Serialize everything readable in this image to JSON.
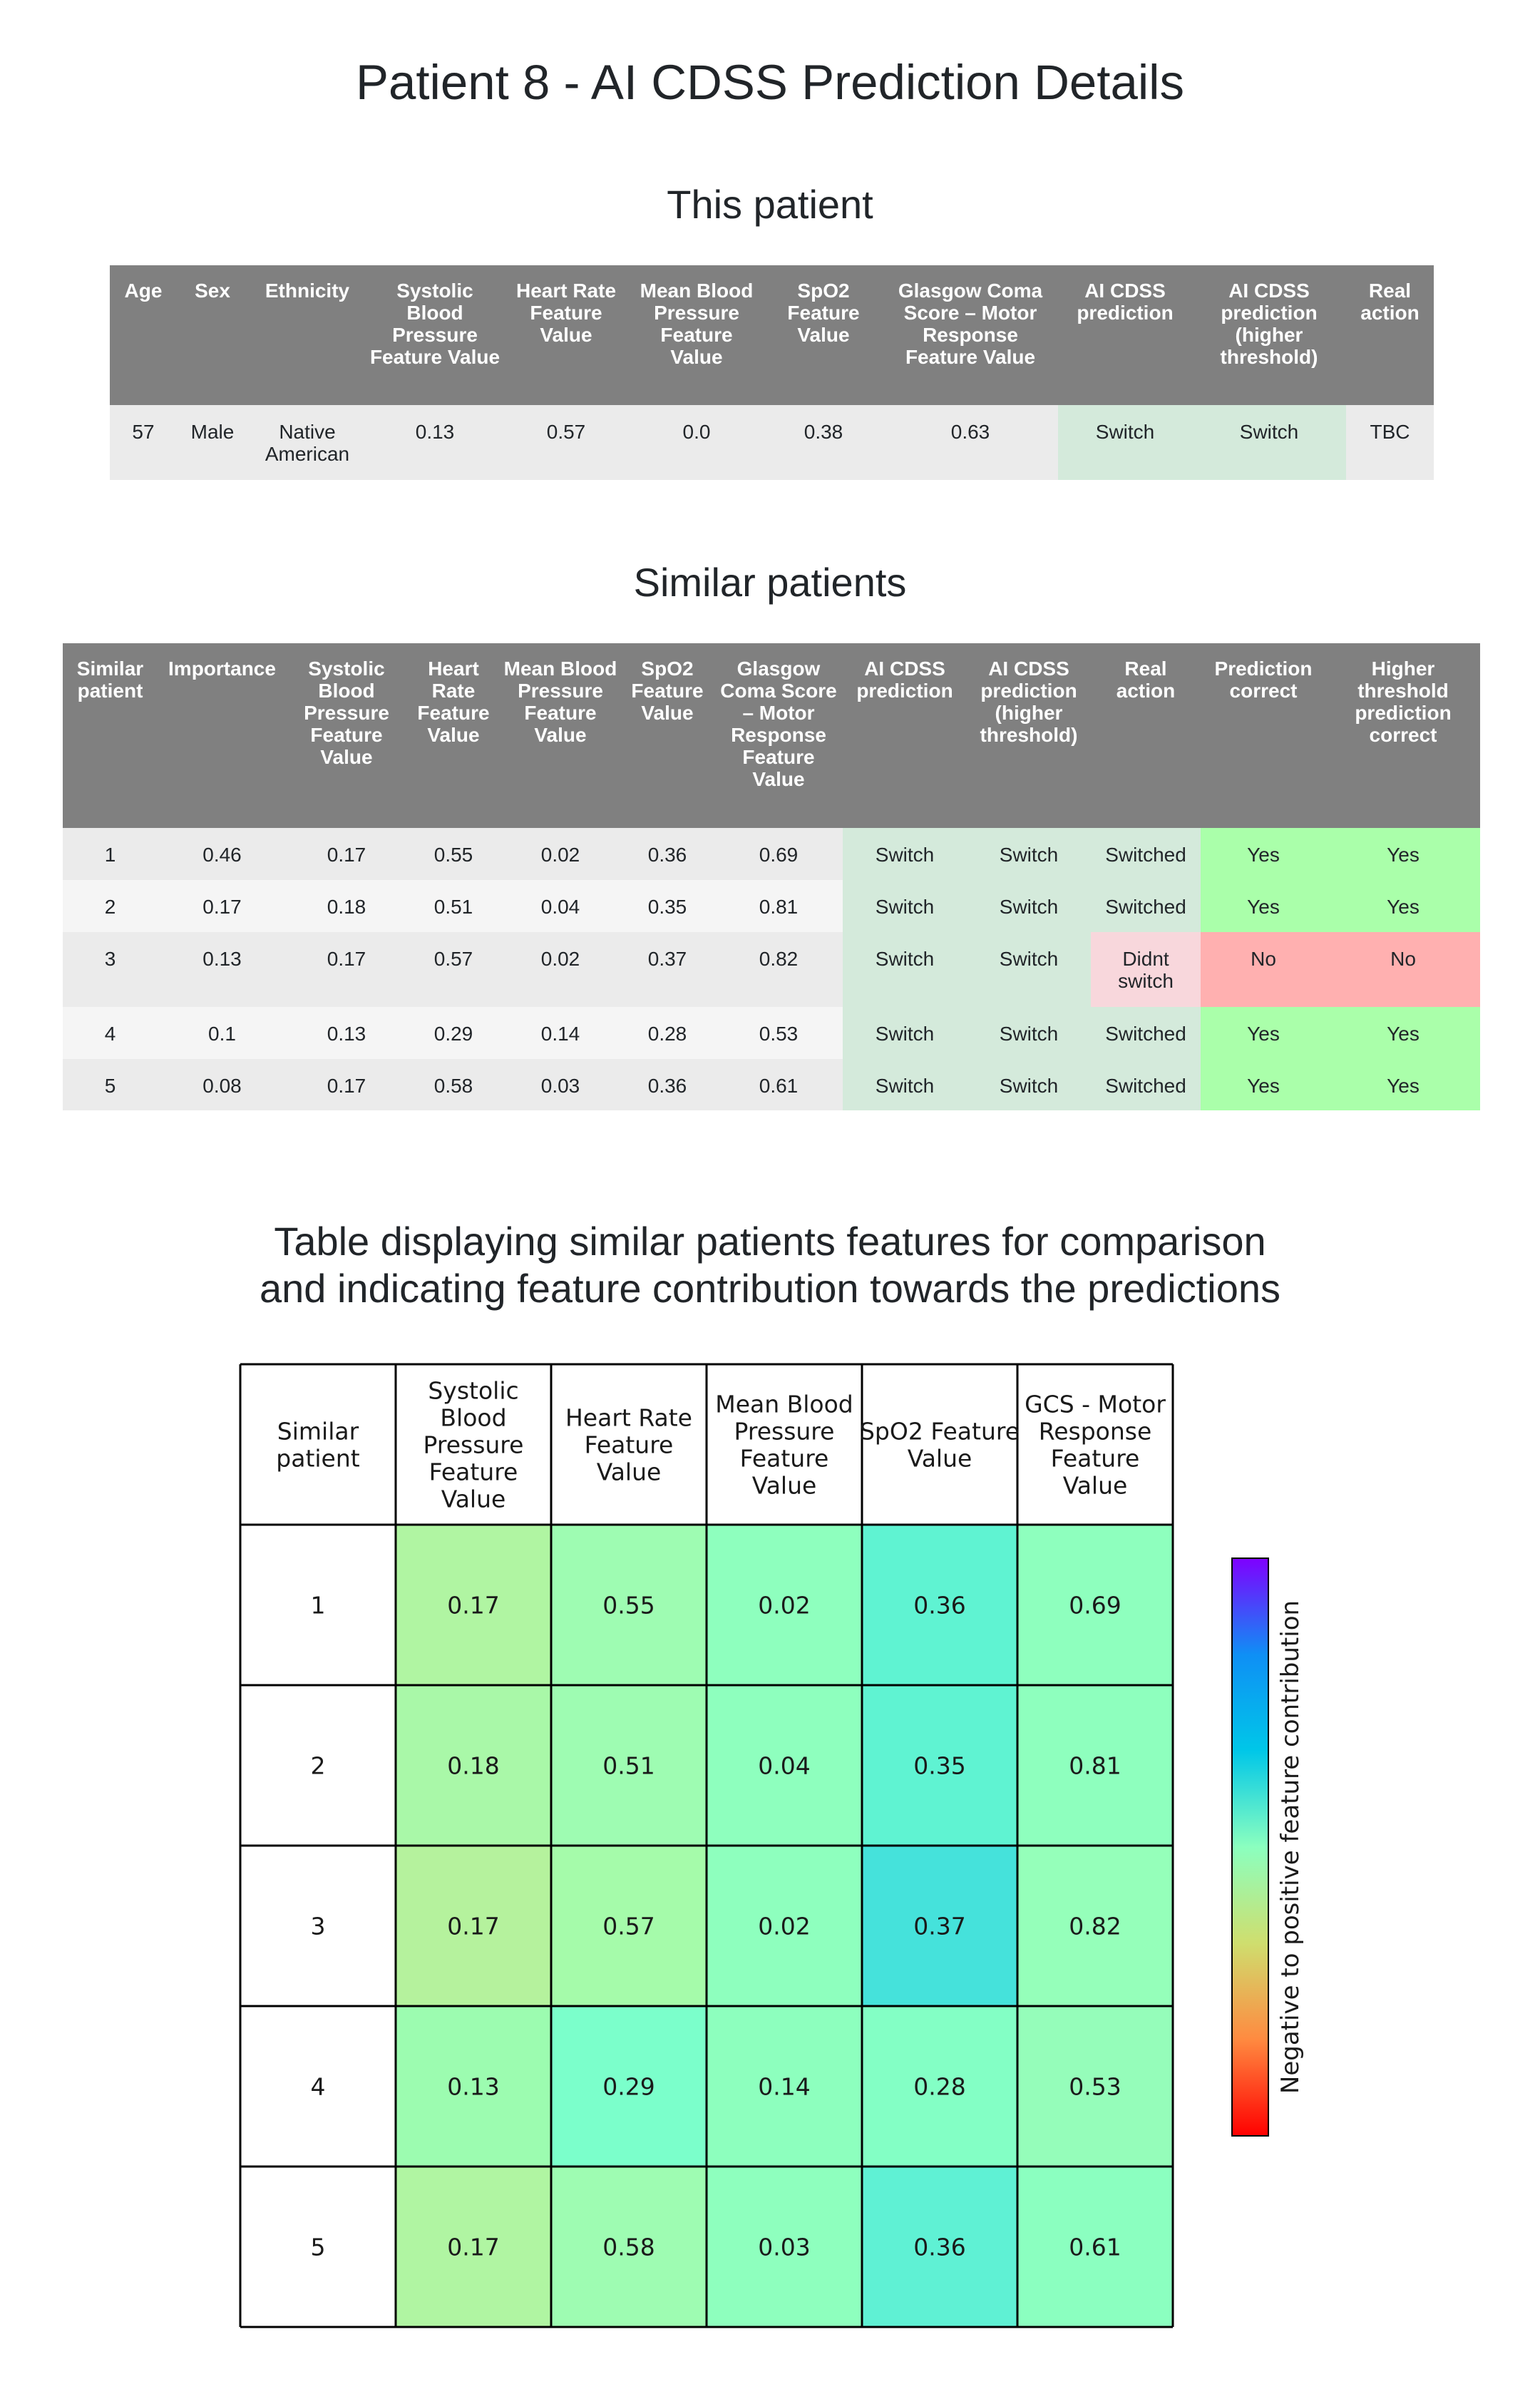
{
  "title": "Patient 8 - AI CDSS Prediction Details",
  "this_patient": {
    "heading": "This patient",
    "columns": [
      "Age",
      "Sex",
      "Ethnicity",
      "Systolic Blood Pressure Feature Value",
      "Heart Rate Feature Value",
      "Mean Blood Pressure Feature Value",
      "SpO2 Feature Value",
      "Glasgow Coma Score – Motor Response Feature Value",
      "AI CDSS prediction",
      "AI CDSS prediction (higher threshold)",
      "Real action"
    ],
    "row": [
      "57",
      "Male",
      "Native American",
      "0.13",
      "0.57",
      "0.0",
      "0.38",
      "0.63",
      "Switch",
      "Switch",
      "TBC"
    ]
  },
  "similar_patients": {
    "heading": "Similar patients",
    "columns": [
      "Similar patient",
      "Importance",
      "Systolic Blood Pressure Feature Value",
      "Heart Rate Feature Value",
      "Mean Blood Pressure Feature Value",
      "SpO2 Feature Value",
      "Glasgow Coma Score – Motor Response Feature Value",
      "AI CDSS prediction",
      "AI CDSS prediction (higher threshold)",
      "Real action",
      "Prediction correct",
      "Higher threshold prediction correct"
    ],
    "rows": [
      [
        "1",
        "0.46",
        "0.17",
        "0.55",
        "0.02",
        "0.36",
        "0.69",
        "Switch",
        "Switch",
        "Switched",
        "Yes",
        "Yes"
      ],
      [
        "2",
        "0.17",
        "0.18",
        "0.51",
        "0.04",
        "0.35",
        "0.81",
        "Switch",
        "Switch",
        "Switched",
        "Yes",
        "Yes"
      ],
      [
        "3",
        "0.13",
        "0.17",
        "0.57",
        "0.02",
        "0.37",
        "0.82",
        "Switch",
        "Switch",
        "Didnt switch",
        "No",
        "No"
      ],
      [
        "4",
        "0.1",
        "0.13",
        "0.29",
        "0.14",
        "0.28",
        "0.53",
        "Switch",
        "Switch",
        "Switched",
        "Yes",
        "Yes"
      ],
      [
        "5",
        "0.08",
        "0.17",
        "0.58",
        "0.03",
        "0.36",
        "0.61",
        "Switch",
        "Switch",
        "Switched",
        "Yes",
        "Yes"
      ]
    ]
  },
  "chart_data": {
    "type": "heatmap",
    "title": "Table displaying similar patients features for comparison and indicating feature contribution towards the predictions",
    "title_lines": [
      "Table displaying similar patients features for comparison",
      "and indicating feature contribution towards the predictions"
    ],
    "row_header": "Similar patient",
    "columns": [
      "Systolic Blood Pressure Feature Value",
      "Heart Rate Feature Value",
      "Mean Blood Pressure Feature Value",
      "SpO2 Feature Value",
      "GCS - Motor Response Feature Value"
    ],
    "rows": [
      "1",
      "2",
      "3",
      "4",
      "5"
    ],
    "values": [
      [
        0.17,
        0.55,
        0.02,
        0.36,
        0.69
      ],
      [
        0.18,
        0.51,
        0.04,
        0.35,
        0.81
      ],
      [
        0.17,
        0.57,
        0.02,
        0.37,
        0.82
      ],
      [
        0.13,
        0.29,
        0.14,
        0.28,
        0.53
      ],
      [
        0.17,
        0.58,
        0.03,
        0.36,
        0.61
      ]
    ],
    "cell_colors": [
      [
        "#b0f5a2",
        "#9efcb2",
        "#8effbe",
        "#5ff3d2",
        "#8effbe"
      ],
      [
        "#a9f8a8",
        "#9efcb2",
        "#8effbe",
        "#5ff3d2",
        "#8effbe"
      ],
      [
        "#b5f29d",
        "#a5fbaa",
        "#8effbe",
        "#45e2db",
        "#95ffba"
      ],
      [
        "#9cfcb0",
        "#7bffcb",
        "#8dffbe",
        "#83ffc5",
        "#95fdba"
      ],
      [
        "#b0f5a2",
        "#9efcb2",
        "#8effbe",
        "#5ff1d4",
        "#8bffc0"
      ]
    ],
    "colorbar": {
      "label": "Negative to positive feature contribution",
      "colormap": "rainbow",
      "colors": [
        "#ff0000",
        "#ff8a40",
        "#cfde6e",
        "#8bffbf",
        "#00c7e8",
        "#0f8ff5",
        "#7f00ff"
      ]
    }
  }
}
